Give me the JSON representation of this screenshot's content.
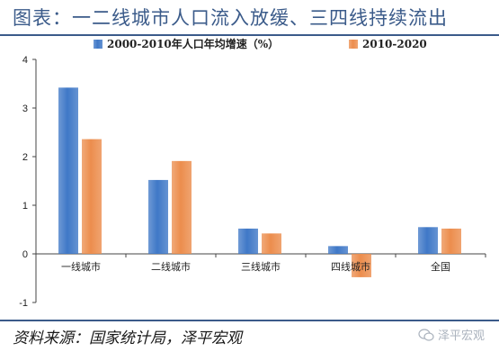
{
  "title": "图表：一二线城市人口流入放缓、三四线持续流出",
  "source": "资料来源：国家统计局，泽平宏观",
  "watermark": "泽平宏观",
  "colors": {
    "accent": "#3b5b8a",
    "series1": "#3f78c7",
    "series2": "#ec8d4d"
  },
  "chart_data": {
    "type": "bar",
    "categories": [
      "一线城市",
      "二线城市",
      "三线城市",
      "四线城市",
      "全国"
    ],
    "series": [
      {
        "name": "2000-2010年人口年均增速（%）",
        "values": [
          3.42,
          1.52,
          0.52,
          0.16,
          0.55
        ],
        "color": "#3f78c7"
      },
      {
        "name": "2010-2020",
        "values": [
          2.36,
          1.91,
          0.42,
          -0.48,
          0.52
        ],
        "color": "#ec8d4d"
      }
    ],
    "ylim": [
      -1,
      4
    ],
    "yticks": [
      -1,
      0,
      1,
      2,
      3,
      4
    ],
    "legend": "top",
    "grid": false
  }
}
